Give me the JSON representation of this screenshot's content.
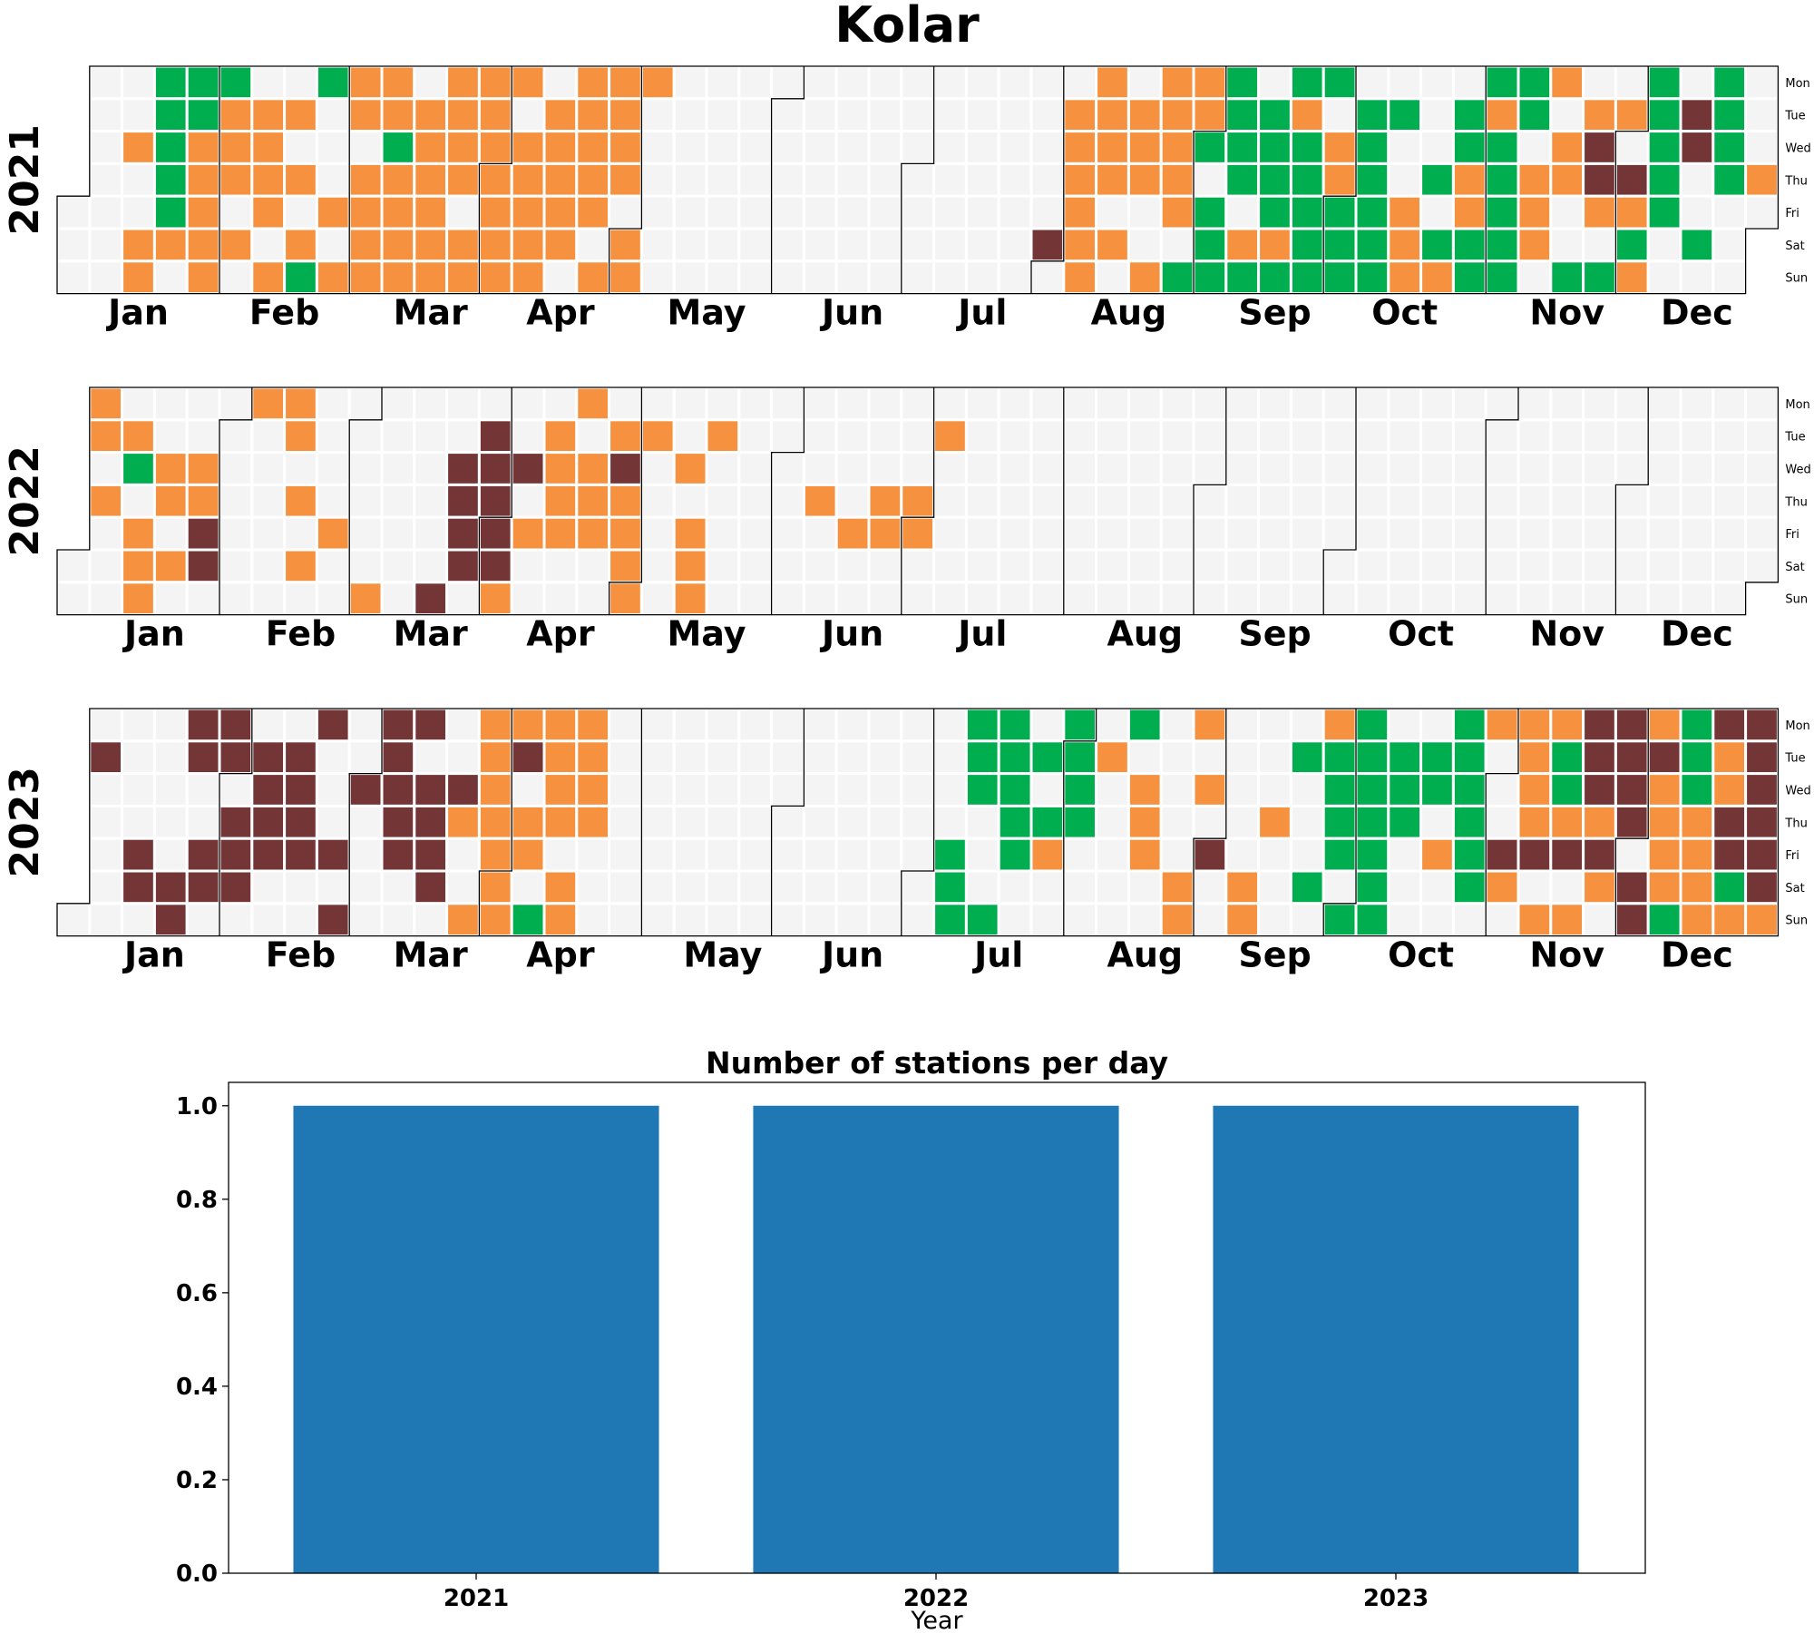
{
  "figure_title": "Kolar",
  "weekday_labels": [
    "Mon",
    "Tue",
    "Wed",
    "Thu",
    "Fri",
    "Sat",
    "Sun"
  ],
  "month_labels": [
    "Jan",
    "Feb",
    "Mar",
    "Apr",
    "May",
    "Jun",
    "Jul",
    "Aug",
    "Sep",
    "Oct",
    "Nov",
    "Dec"
  ],
  "colors": {
    "empty": "#f4f4f4",
    "orange": "#f5913f",
    "green": "#00ad4f",
    "brown": "#733536",
    "bar": "#1f77b4"
  },
  "chart_data": [
    {
      "type": "heatmap",
      "title": "2021",
      "year": 2021,
      "rows": "weekday (Mon-Sun)",
      "legend": "none",
      "day_categories": {
        "O": "orange",
        "G": "green",
        "B": "brown",
        ".": "empty"
      },
      "weeks": [
        ".......",
        ".......",
        "..O..OO",
        "GGGGGO.",
        "GGOOOOO",
        "GOOO.O.",
        ".OOOO.O",
        ".O.O.OG",
        "G...O.O",
        "OO.OOOO",
        "OOGOOOO",
        ".OOOOOO",
        "OOOO.OO",
        "OOOOOOO",
        "O.OOOOO",
        ".OOOOO.",
        "OOOOO.O",
        "OOOO.OO",
        "O......",
        ".......",
        ".......",
        ".......",
        ".......",
        ".......",
        ".......",
        ".......",
        ".......",
        ".......",
        ".......",
        ".......",
        ".....B.",
        ".OOOOOO",
        "OOOO.O.",
        ".OOO..O",
        "OOOOO.G",
        "OOG.GGG",
        "GGGG.OG",
        ".GGGGOG",
        "GOGGGGG",
        "G.OOGGG",
        ".GGGGGG",
        ".G..OOO",
        "...G.GO",
        ".GGOOGG",
        "GOGGGGG",
        "GG.OOO.",
        "O.OO..G",
        ".OBBO.G",
        ".O.BOGO",
        "GGGGG..",
        ".BB..G.",
        "GGGG...",
        "...O...",
        ".G.OOOO",
        ".BOOGO.",
        "G..OBBG",
        ".....O.",
        ".....BO",
        ".O....."
      ]
    },
    {
      "type": "heatmap",
      "title": "2022",
      "year": 2022,
      "rows": "weekday (Mon-Sun)",
      "legend": "none",
      "day_categories": {
        "O": "orange",
        "G": "green",
        "B": "brown",
        ".": "empty"
      },
      "weeks": [
        ".......",
        "OO.O...",
        ".OG.OOO",
        "..OO.O.",
        "..OOBB.",
        ".......",
        "O......",
        "OO.O.O.",
        "....O..",
        "......O",
        ".......",
        "......B",
        "..BBBB.",
        ".BBBBBO",
        "..B.O..",
        ".OOOO..",
        "O.OOO..",
        ".OBOOOO",
        ".O.....",
        "..O.OOO",
        ".O.....",
        ".......",
        ".......",
        "...O...",
        "....O..",
        "...OO..",
        "...OO..",
        ".O.....",
        ".......",
        ".......",
        ".......",
        ".......",
        ".......",
        ".......",
        ".......",
        ".......",
        ".......",
        ".......",
        ".......",
        ".......",
        ".......",
        ".......",
        ".......",
        ".......",
        ".......",
        ".......",
        ".......",
        ".......",
        ".......",
        ".......",
        ".......",
        ".......",
        ".......",
        "...OO.B",
        ".BBBBOB",
        "OBOOOOO",
        "BBBOOOO",
        "OOBBBBB",
        "BBOOOOO",
        "BBBBBOO",
        "OBBOOOO",
        "OBBOO..",
        ".BBBB..",
        "B......",
        ".......",
        "......B",
        ".B...B.",
        "......."
      ]
    },
    {
      "type": "heatmap",
      "title": "2023",
      "year": 2023,
      "rows": "weekday (Mon-Sun)",
      "legend": "none",
      "day_categories": {
        "O": "orange",
        "G": "green",
        "B": "brown",
        ".": "empty"
      },
      "weeks": [
        "......",
        ".B.....",
        "....BB.",
        ".....BB",
        "BB..BB.",
        "BB.BBB.",
        ".BBBB..",
        ".BBBB..",
        "B...B.B",
        "..B....",
        "BBBBB..",
        "B.BBBB.",
        "..BO..O",
        "OOOOOOO",
        "OB.OO.G",
        "OOOO.OO",
        "OOOO...",
        ".......",
        ".......",
        ".......",
        ".......",
        ".......",
        ".......",
        ".......",
        ".......",
        ".......",
        ".......",
        "....GGG",
        "GGG...G",
        "GGGGG..",
        ".G.GO..",
        "GGGG...",
        ".O.....",
        "G.OOO..",
        ".....OO",
        "O.O.B..",
        ".....OO",
        "...O...",
        ".G...G.",
        "OGGGG.G",
        "GGGGGGG",
        ".GGG...",
        ".GG.O..",
        "GGGGGG.",
        "O...BO.",
        "OOOOB.O",
        "OGGOB.O",
        "BBBOBO.",
        "BBBB.BB",
        "OBOOOOG",
        "GGGOOOO",
        "BOOBBGO",
        "BBBBBBO",
        "O.OO...",
        "OGGOOOB",
        "OBBBOB.",
        "OBBBBBO",
        "OOOOOO.",
        "OOOOOOO"
      ]
    },
    {
      "type": "bar",
      "title": "Number of stations per day",
      "categories": [
        "2021",
        "2022",
        "2023"
      ],
      "values": [
        1,
        1,
        1
      ],
      "xlabel": "Year",
      "ylabel": "",
      "ylim": [
        0,
        1.05
      ],
      "yticks": [
        "0.0",
        "0.2",
        "0.4",
        "0.6",
        "0.8",
        "1.0"
      ]
    }
  ]
}
